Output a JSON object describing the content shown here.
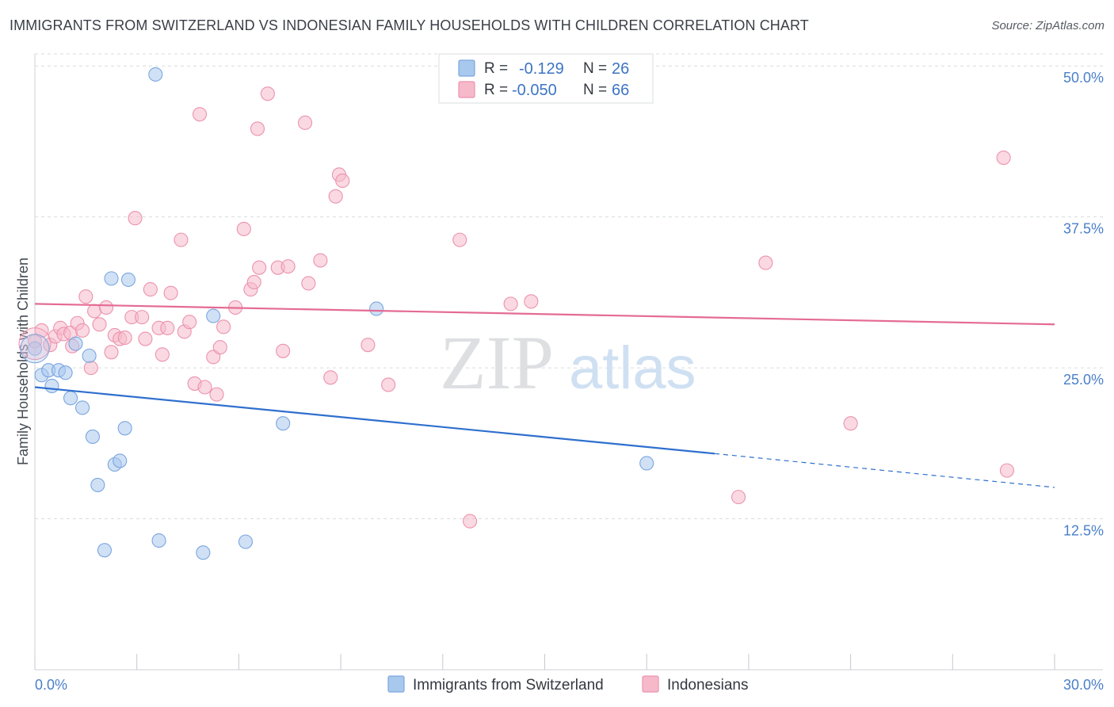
{
  "title": "IMMIGRANTS FROM SWITZERLAND VS INDONESIAN FAMILY HOUSEHOLDS WITH CHILDREN CORRELATION CHART",
  "source": "Source: ZipAtlas.com",
  "watermark": {
    "zip": "ZIP",
    "atlas": "atlas"
  },
  "legend_box": {
    "rows": [
      {
        "r_label": "R =",
        "r_value": "-0.129",
        "n_label": "N =",
        "n_value": "26",
        "color": "#a9c8ee"
      },
      {
        "r_label": "R =",
        "r_value": "-0.050",
        "n_label": "N =",
        "n_value": "66",
        "color": "#f6b9ca"
      }
    ]
  },
  "bottom_legend": [
    {
      "label": "Immigrants from Switzerland",
      "color": "#a9c8ee"
    },
    {
      "label": "Indonesians",
      "color": "#f6b9ca"
    }
  ],
  "chart_data": {
    "type": "scatter",
    "ylabel": "Family Households with Children",
    "xlim": [
      0,
      30
    ],
    "ylim": [
      0,
      51
    ],
    "x_tick_labels": [
      {
        "value": 0,
        "label": "0.0%"
      },
      {
        "value": 30,
        "label": "30.0%"
      }
    ],
    "x_minor_ticks": [
      0,
      3,
      6,
      9,
      12,
      15,
      18,
      21,
      24,
      27,
      30
    ],
    "y_tick_labels": [
      {
        "value": 12.5,
        "label": "12.5%"
      },
      {
        "value": 25.0,
        "label": "25.0%"
      },
      {
        "value": 37.5,
        "label": "37.5%"
      },
      {
        "value": 50.0,
        "label": "50.0%"
      }
    ],
    "grid": true,
    "series": [
      {
        "name": "Immigrants from Switzerland",
        "color": "#a9c8ee",
        "line_color": "#2f6fce",
        "trend": {
          "x0": 0.0,
          "y0": 23.4,
          "x1": 20.0,
          "y1": 17.9,
          "dashed_to_x": 30.0,
          "dashed_to_y": 15.1
        },
        "points": [
          [
            0.0,
            26.6
          ],
          [
            0.2,
            24.4
          ],
          [
            0.4,
            24.8
          ],
          [
            0.5,
            23.5
          ],
          [
            0.7,
            24.8
          ],
          [
            0.9,
            24.6
          ],
          [
            1.05,
            22.5
          ],
          [
            1.2,
            27.0
          ],
          [
            1.4,
            21.7
          ],
          [
            1.6,
            26.0
          ],
          [
            1.7,
            19.3
          ],
          [
            1.85,
            15.3
          ],
          [
            2.05,
            9.9
          ],
          [
            2.25,
            32.4
          ],
          [
            2.35,
            17.0
          ],
          [
            2.5,
            17.3
          ],
          [
            2.65,
            20.0
          ],
          [
            2.75,
            32.3
          ],
          [
            3.55,
            49.3
          ],
          [
            3.65,
            10.7
          ],
          [
            4.95,
            9.7
          ],
          [
            5.25,
            29.3
          ],
          [
            6.2,
            10.6
          ],
          [
            7.3,
            20.4
          ],
          [
            10.05,
            29.9
          ],
          [
            18.0,
            17.1
          ]
        ]
      },
      {
        "name": "Indonesians",
        "color": "#f6b9ca",
        "line_color": "#e46b95",
        "trend": {
          "x0": 0.0,
          "y0": 30.3,
          "x1": 30.0,
          "y1": 28.6
        },
        "points": [
          [
            0.0,
            27.2
          ],
          [
            0.2,
            28.1
          ],
          [
            0.45,
            26.9
          ],
          [
            0.6,
            27.6
          ],
          [
            0.75,
            28.3
          ],
          [
            0.85,
            27.8
          ],
          [
            1.05,
            27.9
          ],
          [
            1.1,
            26.8
          ],
          [
            1.25,
            28.7
          ],
          [
            1.4,
            28.1
          ],
          [
            1.5,
            30.9
          ],
          [
            1.65,
            25.0
          ],
          [
            1.75,
            29.7
          ],
          [
            1.9,
            28.6
          ],
          [
            2.1,
            30.0
          ],
          [
            2.25,
            26.3
          ],
          [
            2.35,
            27.7
          ],
          [
            2.5,
            27.4
          ],
          [
            2.65,
            27.5
          ],
          [
            2.85,
            29.2
          ],
          [
            2.95,
            37.4
          ],
          [
            3.15,
            29.2
          ],
          [
            3.25,
            27.4
          ],
          [
            3.4,
            31.5
          ],
          [
            3.65,
            28.3
          ],
          [
            3.75,
            26.1
          ],
          [
            3.9,
            28.3
          ],
          [
            4.0,
            31.2
          ],
          [
            4.3,
            35.6
          ],
          [
            4.4,
            28.0
          ],
          [
            4.55,
            28.8
          ],
          [
            4.7,
            23.7
          ],
          [
            4.85,
            46.0
          ],
          [
            5.0,
            23.4
          ],
          [
            5.25,
            25.9
          ],
          [
            5.35,
            22.8
          ],
          [
            5.45,
            26.7
          ],
          [
            5.55,
            28.4
          ],
          [
            5.9,
            30.0
          ],
          [
            6.15,
            36.5
          ],
          [
            6.35,
            31.5
          ],
          [
            6.45,
            32.1
          ],
          [
            6.55,
            44.8
          ],
          [
            6.6,
            33.3
          ],
          [
            6.85,
            47.7
          ],
          [
            7.15,
            33.3
          ],
          [
            7.3,
            26.4
          ],
          [
            7.45,
            33.4
          ],
          [
            7.95,
            45.3
          ],
          [
            8.05,
            32.0
          ],
          [
            8.4,
            33.9
          ],
          [
            8.7,
            24.2
          ],
          [
            8.85,
            39.2
          ],
          [
            8.95,
            41.0
          ],
          [
            9.05,
            40.5
          ],
          [
            9.8,
            26.9
          ],
          [
            10.4,
            23.6
          ],
          [
            12.5,
            35.6
          ],
          [
            12.8,
            12.3
          ],
          [
            14.0,
            30.3
          ],
          [
            14.6,
            30.5
          ],
          [
            20.7,
            14.3
          ],
          [
            21.5,
            33.7
          ],
          [
            24.0,
            20.4
          ],
          [
            28.5,
            42.4
          ],
          [
            28.6,
            16.5
          ]
        ]
      }
    ]
  }
}
